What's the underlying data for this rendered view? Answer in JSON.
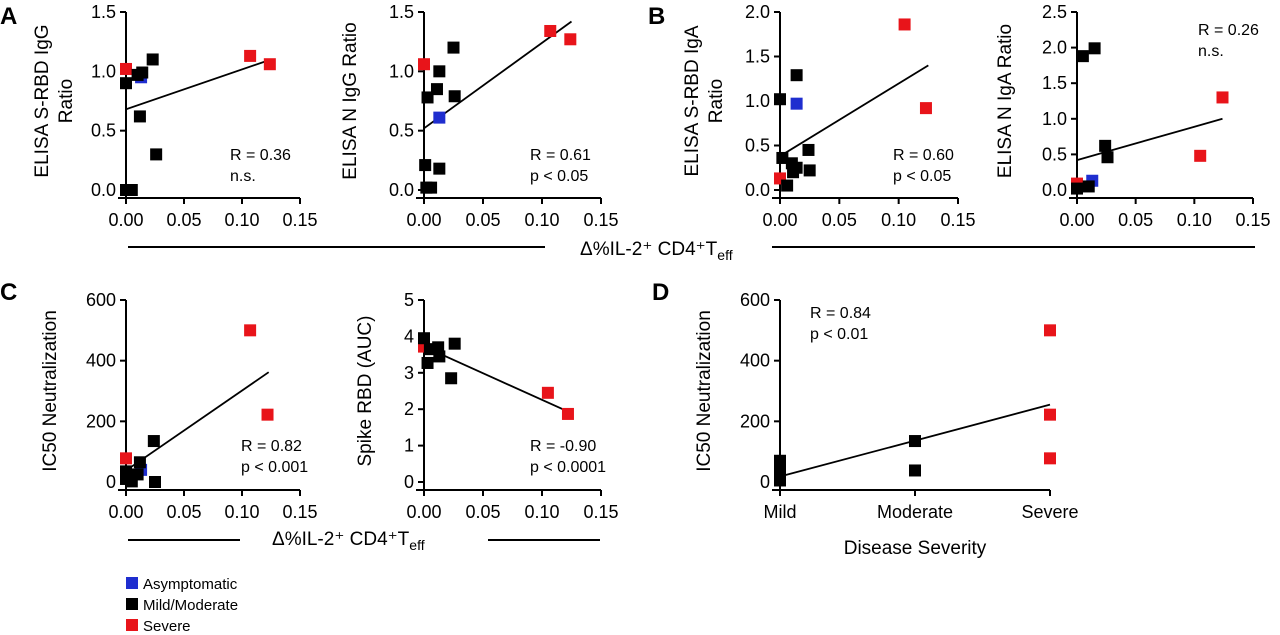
{
  "figure": {
    "panel_letters": [
      "A",
      "B",
      "C",
      "D"
    ],
    "shared_xlabel_top": "Δ%IL-2⁺ CD4⁺T",
    "shared_xlabel_top_sub": "eff",
    "shared_xlabel_bottom": "Δ%IL-2⁺ CD4⁺T",
    "shared_xlabel_bottom_sub": "eff",
    "legend": [
      {
        "label": "Asymptomatic",
        "color": "#1f2ecf"
      },
      {
        "label": "Mild/Moderate",
        "color": "#000000"
      },
      {
        "label": "Severe",
        "color": "#e8141a"
      }
    ]
  },
  "chart_data": [
    {
      "id": "A1",
      "type": "scatter",
      "ylabel_lines": [
        "ELISA S-RBD IgG",
        "Ratio"
      ],
      "xlim": [
        0,
        0.15
      ],
      "ylim": [
        0,
        1.5
      ],
      "xticks": [
        0.0,
        0.05,
        0.1,
        0.15
      ],
      "xtick_labels": [
        "0.00",
        "0.05",
        "0.10",
        "0.15"
      ],
      "yticks": [
        0.0,
        0.5,
        1.0,
        1.5
      ],
      "ytick_labels": [
        "0.0",
        "0.5",
        "1.0",
        "1.5"
      ],
      "stats": [
        "R = 0.36",
        "n.s."
      ],
      "fit": [
        [
          0,
          0.68
        ],
        [
          0.125,
          1.1
        ]
      ],
      "points": [
        {
          "x": 0.0,
          "y": 1.02,
          "group": "Severe"
        },
        {
          "x": 0.107,
          "y": 1.13,
          "group": "Severe"
        },
        {
          "x": 0.124,
          "y": 1.06,
          "group": "Severe"
        },
        {
          "x": 0.013,
          "y": 0.95,
          "group": "Asymptomatic"
        },
        {
          "x": 0.0,
          "y": 0.9,
          "group": "Mild/Moderate"
        },
        {
          "x": 0.01,
          "y": 0.97,
          "group": "Mild/Moderate"
        },
        {
          "x": 0.014,
          "y": 0.99,
          "group": "Mild/Moderate"
        },
        {
          "x": 0.023,
          "y": 1.1,
          "group": "Mild/Moderate"
        },
        {
          "x": 0.012,
          "y": 0.62,
          "group": "Mild/Moderate"
        },
        {
          "x": 0.026,
          "y": 0.3,
          "group": "Mild/Moderate"
        },
        {
          "x": 0.0,
          "y": 0.0,
          "group": "Mild/Moderate"
        },
        {
          "x": 0.005,
          "y": 0.0,
          "group": "Mild/Moderate"
        }
      ]
    },
    {
      "id": "A2",
      "type": "scatter",
      "ylabel_lines": [
        "ELISA N IgG Ratio"
      ],
      "xlim": [
        0,
        0.15
      ],
      "ylim": [
        0,
        1.5
      ],
      "xticks": [
        0.0,
        0.05,
        0.1,
        0.15
      ],
      "xtick_labels": [
        "0.00",
        "0.05",
        "0.10",
        "0.15"
      ],
      "yticks": [
        0.0,
        0.5,
        1.0,
        1.5
      ],
      "ytick_labels": [
        "0.0",
        "0.5",
        "1.0",
        "1.5"
      ],
      "stats": [
        "R = 0.61",
        "p < 0.05"
      ],
      "fit": [
        [
          0,
          0.52
        ],
        [
          0.125,
          1.42
        ]
      ],
      "points": [
        {
          "x": 0.0,
          "y": 1.06,
          "group": "Severe"
        },
        {
          "x": 0.107,
          "y": 1.34,
          "group": "Severe"
        },
        {
          "x": 0.124,
          "y": 1.27,
          "group": "Severe"
        },
        {
          "x": 0.013,
          "y": 0.61,
          "group": "Asymptomatic"
        },
        {
          "x": 0.025,
          "y": 1.2,
          "group": "Mild/Moderate"
        },
        {
          "x": 0.013,
          "y": 1.0,
          "group": "Mild/Moderate"
        },
        {
          "x": 0.011,
          "y": 0.85,
          "group": "Mild/Moderate"
        },
        {
          "x": 0.003,
          "y": 0.78,
          "group": "Mild/Moderate"
        },
        {
          "x": 0.026,
          "y": 0.79,
          "group": "Mild/Moderate"
        },
        {
          "x": 0.001,
          "y": 0.21,
          "group": "Mild/Moderate"
        },
        {
          "x": 0.013,
          "y": 0.18,
          "group": "Mild/Moderate"
        },
        {
          "x": 0.002,
          "y": 0.02,
          "group": "Mild/Moderate"
        },
        {
          "x": 0.006,
          "y": 0.02,
          "group": "Mild/Moderate"
        }
      ]
    },
    {
      "id": "B1",
      "type": "scatter",
      "ylabel_lines": [
        "ELISA S-RBD IgA",
        "Ratio"
      ],
      "xlim": [
        0,
        0.15
      ],
      "ylim": [
        0,
        2.0
      ],
      "xticks": [
        0.0,
        0.05,
        0.1,
        0.15
      ],
      "xtick_labels": [
        "0.00",
        "0.05",
        "0.10",
        "0.15"
      ],
      "yticks": [
        0.0,
        0.5,
        1.0,
        1.5,
        2.0
      ],
      "ytick_labels": [
        "0.0",
        "0.5",
        "1.0",
        "1.5",
        "2.0"
      ],
      "stats": [
        "R = 0.60",
        "p < 0.05"
      ],
      "fit": [
        [
          0,
          0.38
        ],
        [
          0.125,
          1.4
        ]
      ],
      "points": [
        {
          "x": 0.0,
          "y": 0.13,
          "group": "Severe"
        },
        {
          "x": 0.105,
          "y": 1.86,
          "group": "Severe"
        },
        {
          "x": 0.123,
          "y": 0.92,
          "group": "Severe"
        },
        {
          "x": 0.014,
          "y": 0.97,
          "group": "Asymptomatic"
        },
        {
          "x": 0.0,
          "y": 1.02,
          "group": "Mild/Moderate"
        },
        {
          "x": 0.014,
          "y": 1.29,
          "group": "Mild/Moderate"
        },
        {
          "x": 0.002,
          "y": 0.36,
          "group": "Mild/Moderate"
        },
        {
          "x": 0.01,
          "y": 0.3,
          "group": "Mild/Moderate"
        },
        {
          "x": 0.014,
          "y": 0.25,
          "group": "Mild/Moderate"
        },
        {
          "x": 0.024,
          "y": 0.45,
          "group": "Mild/Moderate"
        },
        {
          "x": 0.025,
          "y": 0.22,
          "group": "Mild/Moderate"
        },
        {
          "x": 0.011,
          "y": 0.2,
          "group": "Mild/Moderate"
        },
        {
          "x": 0.006,
          "y": 0.05,
          "group": "Mild/Moderate"
        }
      ]
    },
    {
      "id": "B2",
      "type": "scatter",
      "ylabel_lines": [
        "ELISA N IgA Ratio"
      ],
      "xlim": [
        0,
        0.15
      ],
      "ylim": [
        0,
        2.5
      ],
      "xticks": [
        0.0,
        0.05,
        0.1,
        0.15
      ],
      "xtick_labels": [
        "0.00",
        "0.05",
        "0.10",
        "0.15"
      ],
      "yticks": [
        0.0,
        0.5,
        1.0,
        1.5,
        2.0,
        2.5
      ],
      "ytick_labels": [
        "0.0",
        "0.5",
        "1.0",
        "1.5",
        "2.0",
        "2.5"
      ],
      "stats": [
        "R = 0.26",
        "n.s."
      ],
      "fit": [
        [
          0,
          0.42
        ],
        [
          0.124,
          1.0
        ]
      ],
      "points": [
        {
          "x": 0.0,
          "y": 0.09,
          "group": "Severe"
        },
        {
          "x": 0.105,
          "y": 0.48,
          "group": "Severe"
        },
        {
          "x": 0.124,
          "y": 1.3,
          "group": "Severe"
        },
        {
          "x": 0.013,
          "y": 0.13,
          "group": "Asymptomatic"
        },
        {
          "x": 0.005,
          "y": 1.88,
          "group": "Mild/Moderate"
        },
        {
          "x": 0.015,
          "y": 1.99,
          "group": "Mild/Moderate"
        },
        {
          "x": 0.024,
          "y": 0.62,
          "group": "Mild/Moderate"
        },
        {
          "x": 0.026,
          "y": 0.46,
          "group": "Mild/Moderate"
        },
        {
          "x": 0.0,
          "y": 0.02,
          "group": "Mild/Moderate"
        },
        {
          "x": 0.01,
          "y": 0.05,
          "group": "Mild/Moderate"
        }
      ]
    },
    {
      "id": "C1",
      "type": "scatter",
      "ylabel_lines": [
        "IC50 Neutralization"
      ],
      "xlim": [
        0,
        0.15
      ],
      "ylim": [
        0,
        600
      ],
      "xticks": [
        0.0,
        0.05,
        0.1,
        0.15
      ],
      "xtick_labels": [
        "0.00",
        "0.05",
        "0.10",
        "0.15"
      ],
      "yticks": [
        0,
        200,
        400,
        600
      ],
      "ytick_labels": [
        "0",
        "200",
        "400",
        "600"
      ],
      "stats": [
        "R = 0.82",
        "p < 0.001"
      ],
      "fit": [
        [
          0,
          38
        ],
        [
          0.123,
          362
        ]
      ],
      "points": [
        {
          "x": 0.0,
          "y": 78,
          "group": "Severe"
        },
        {
          "x": 0.107,
          "y": 500,
          "group": "Severe"
        },
        {
          "x": 0.122,
          "y": 222,
          "group": "Severe"
        },
        {
          "x": 0.013,
          "y": 40,
          "group": "Asymptomatic"
        },
        {
          "x": 0.024,
          "y": 135,
          "group": "Mild/Moderate"
        },
        {
          "x": 0.012,
          "y": 65,
          "group": "Mild/Moderate"
        },
        {
          "x": 0.0,
          "y": 35,
          "group": "Mild/Moderate"
        },
        {
          "x": 0.0,
          "y": 10,
          "group": "Mild/Moderate"
        },
        {
          "x": 0.005,
          "y": 2,
          "group": "Mild/Moderate"
        },
        {
          "x": 0.01,
          "y": 25,
          "group": "Mild/Moderate"
        },
        {
          "x": 0.025,
          "y": 0,
          "group": "Mild/Moderate"
        }
      ]
    },
    {
      "id": "C2",
      "type": "scatter",
      "ylabel_lines": [
        "Spike RBD (AUC)"
      ],
      "xlim": [
        0,
        0.15
      ],
      "ylim": [
        0,
        5
      ],
      "xticks": [
        0.0,
        0.05,
        0.1,
        0.15
      ],
      "xtick_labels": [
        "0.00",
        "0.05",
        "0.10",
        "0.15"
      ],
      "yticks": [
        0,
        1,
        2,
        3,
        4,
        5
      ],
      "ytick_labels": [
        "0",
        "1",
        "2",
        "3",
        "4",
        "5"
      ],
      "stats": [
        "R =  -0.90",
        "p < 0.0001"
      ],
      "fit": [
        [
          0,
          3.72
        ],
        [
          0.123,
          1.92
        ]
      ],
      "points": [
        {
          "x": 0.0,
          "y": 3.72,
          "group": "Severe"
        },
        {
          "x": 0.105,
          "y": 2.45,
          "group": "Severe"
        },
        {
          "x": 0.122,
          "y": 1.87,
          "group": "Severe"
        },
        {
          "x": 0.0,
          "y": 3.95,
          "group": "Mild/Moderate"
        },
        {
          "x": 0.005,
          "y": 3.65,
          "group": "Mild/Moderate"
        },
        {
          "x": 0.012,
          "y": 3.7,
          "group": "Mild/Moderate"
        },
        {
          "x": 0.013,
          "y": 3.45,
          "group": "Mild/Moderate"
        },
        {
          "x": 0.003,
          "y": 3.27,
          "group": "Mild/Moderate"
        },
        {
          "x": 0.026,
          "y": 3.8,
          "group": "Mild/Moderate"
        },
        {
          "x": 0.023,
          "y": 2.85,
          "group": "Mild/Moderate"
        }
      ]
    },
    {
      "id": "D",
      "type": "scatter",
      "ylabel_lines": [
        "IC50 Neutralization"
      ],
      "xlabel": "Disease Severity",
      "categories": [
        "Mild",
        "Moderate",
        "Severe"
      ],
      "ylim": [
        0,
        600
      ],
      "yticks": [
        0,
        200,
        400,
        600
      ],
      "ytick_labels": [
        "0",
        "200",
        "400",
        "600"
      ],
      "stats": [
        "R = 0.84",
        "p < 0.01"
      ],
      "fit": [
        [
          "Mild",
          18
        ],
        [
          "Severe",
          255
        ]
      ],
      "points": [
        {
          "x": "Mild",
          "y": 70,
          "group": "Mild/Moderate"
        },
        {
          "x": "Mild",
          "y": 50,
          "group": "Mild/Moderate"
        },
        {
          "x": "Mild",
          "y": 35,
          "group": "Mild/Moderate"
        },
        {
          "x": "Mild",
          "y": 20,
          "group": "Mild/Moderate"
        },
        {
          "x": "Mild",
          "y": 5,
          "group": "Mild/Moderate"
        },
        {
          "x": "Moderate",
          "y": 135,
          "group": "Mild/Moderate"
        },
        {
          "x": "Moderate",
          "y": 38,
          "group": "Mild/Moderate"
        },
        {
          "x": "Severe",
          "y": 500,
          "group": "Severe"
        },
        {
          "x": "Severe",
          "y": 222,
          "group": "Severe"
        },
        {
          "x": "Severe",
          "y": 78,
          "group": "Severe"
        }
      ]
    }
  ]
}
